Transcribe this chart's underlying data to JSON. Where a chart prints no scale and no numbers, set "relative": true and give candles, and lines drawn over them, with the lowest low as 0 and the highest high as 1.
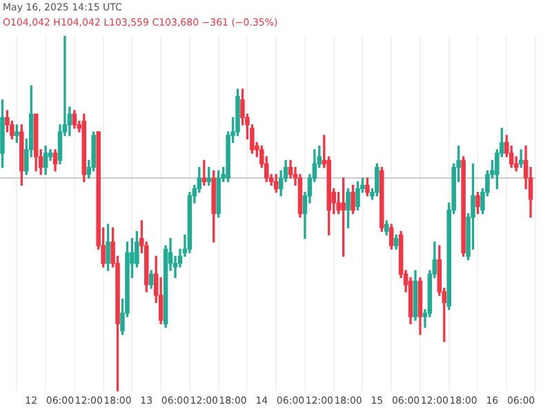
{
  "chart_data": {
    "type": "candlestick",
    "relative": true,
    "annotations": [
      "May 16, 2025 14:15 UTC",
      "O104,042 H104,042 L103,559 C103,680 −361 (−0.35%)"
    ],
    "x": [
      "2025-05-11T18:00",
      "2025-05-11T19:00",
      "2025-05-11T20:00",
      "2025-05-11T21:00",
      "2025-05-11T22:00",
      "2025-05-11T23:00",
      "2025-05-12T00:00",
      "2025-05-12T01:00",
      "2025-05-12T02:00",
      "2025-05-12T03:00",
      "2025-05-12T04:00",
      "2025-05-12T05:00",
      "2025-05-12T06:00",
      "2025-05-12T07:00",
      "2025-05-12T08:00",
      "2025-05-12T09:00",
      "2025-05-12T10:00",
      "2025-05-12T11:00",
      "2025-05-12T12:00",
      "2025-05-12T13:00",
      "2025-05-12T14:00",
      "2025-05-12T15:00",
      "2025-05-12T16:00",
      "2025-05-12T17:00",
      "2025-05-12T18:00",
      "2025-05-12T19:00",
      "2025-05-12T20:00",
      "2025-05-12T21:00",
      "2025-05-12T22:00",
      "2025-05-12T23:00",
      "2025-05-13T00:00",
      "2025-05-13T01:00",
      "2025-05-13T02:00",
      "2025-05-13T03:00",
      "2025-05-13T04:00",
      "2025-05-13T05:00",
      "2025-05-13T06:00",
      "2025-05-13T07:00",
      "2025-05-13T08:00",
      "2025-05-13T09:00",
      "2025-05-13T10:00",
      "2025-05-13T11:00",
      "2025-05-13T12:00",
      "2025-05-13T13:00",
      "2025-05-13T14:00",
      "2025-05-13T15:00",
      "2025-05-13T16:00",
      "2025-05-13T17:00",
      "2025-05-13T18:00",
      "2025-05-13T19:00",
      "2025-05-13T20:00",
      "2025-05-13T21:00",
      "2025-05-13T22:00",
      "2025-05-13T23:00",
      "2025-05-14T00:00",
      "2025-05-14T01:00",
      "2025-05-14T02:00",
      "2025-05-14T03:00",
      "2025-05-14T04:00",
      "2025-05-14T05:00",
      "2025-05-14T06:00",
      "2025-05-14T07:00",
      "2025-05-14T08:00",
      "2025-05-14T09:00",
      "2025-05-14T10:00",
      "2025-05-14T11:00",
      "2025-05-14T12:00",
      "2025-05-14T13:00",
      "2025-05-14T14:00",
      "2025-05-14T15:00",
      "2025-05-14T16:00",
      "2025-05-14T17:00",
      "2025-05-14T18:00",
      "2025-05-14T19:00",
      "2025-05-14T20:00",
      "2025-05-14T21:00",
      "2025-05-14T22:00",
      "2025-05-14T23:00",
      "2025-05-15T00:00",
      "2025-05-15T01:00",
      "2025-05-15T02:00",
      "2025-05-15T03:00",
      "2025-05-15T04:00",
      "2025-05-15T05:00",
      "2025-05-15T06:00",
      "2025-05-15T07:00",
      "2025-05-15T08:00",
      "2025-05-15T09:00",
      "2025-05-15T10:00",
      "2025-05-15T11:00",
      "2025-05-15T12:00",
      "2025-05-15T13:00",
      "2025-05-15T14:00",
      "2025-05-15T15:00",
      "2025-05-15T16:00",
      "2025-05-15T17:00",
      "2025-05-15T18:00",
      "2025-05-15T19:00",
      "2025-05-15T20:00",
      "2025-05-15T21:00",
      "2025-05-15T22:00",
      "2025-05-15T23:00",
      "2025-05-16T00:00",
      "2025-05-16T01:00",
      "2025-05-16T02:00",
      "2025-05-16T03:00",
      "2025-05-16T04:00",
      "2025-05-16T05:00",
      "2025-05-16T06:00",
      "2025-05-16T07:00",
      "2025-05-16T08:00"
    ],
    "ohlc": [
      [
        0.67,
        0.82,
        0.63,
        0.77
      ],
      [
        0.77,
        0.79,
        0.73,
        0.75
      ],
      [
        0.75,
        0.76,
        0.71,
        0.72
      ],
      [
        0.72,
        0.75,
        0.7,
        0.73
      ],
      [
        0.73,
        0.75,
        0.58,
        0.62
      ],
      [
        0.62,
        0.71,
        0.61,
        0.68
      ],
      [
        0.68,
        0.86,
        0.66,
        0.78
      ],
      [
        0.78,
        0.78,
        0.62,
        0.66
      ],
      [
        0.66,
        0.68,
        0.61,
        0.63
      ],
      [
        0.63,
        0.69,
        0.61,
        0.67
      ],
      [
        0.66,
        0.68,
        0.65,
        0.67
      ],
      [
        0.67,
        0.68,
        0.62,
        0.64
      ],
      [
        0.65,
        0.75,
        0.64,
        0.73
      ],
      [
        0.73,
        1.0,
        0.72,
        0.75
      ],
      [
        0.75,
        0.8,
        0.72,
        0.78
      ],
      [
        0.78,
        0.79,
        0.74,
        0.75
      ],
      [
        0.75,
        0.76,
        0.73,
        0.74
      ],
      [
        0.76,
        0.78,
        0.59,
        0.61
      ],
      [
        0.61,
        0.65,
        0.6,
        0.63
      ],
      [
        0.63,
        0.73,
        0.62,
        0.72
      ],
      [
        0.73,
        0.73,
        0.4,
        0.41
      ],
      [
        0.41,
        0.46,
        0.35,
        0.36
      ],
      [
        0.36,
        0.47,
        0.34,
        0.42
      ],
      [
        0.42,
        0.46,
        0.35,
        0.36
      ],
      [
        0.36,
        0.38,
        0,
        0.19
      ],
      [
        0.17,
        0.26,
        0.16,
        0.22
      ],
      [
        0.22,
        0.42,
        0.21,
        0.39
      ],
      [
        0.36,
        0.43,
        0.32,
        0.39
      ],
      [
        0.36,
        0.45,
        0.35,
        0.42
      ],
      [
        0.43,
        0.48,
        0.39,
        0.41
      ],
      [
        0.41,
        0.42,
        0.28,
        0.3
      ],
      [
        0.3,
        0.34,
        0.29,
        0.33
      ],
      [
        0.33,
        0.38,
        0.25,
        0.27
      ],
      [
        0.27,
        0.32,
        0.19,
        0.2
      ],
      [
        0.19,
        0.41,
        0.18,
        0.4
      ],
      [
        0.36,
        0.43,
        0.34,
        0.39
      ],
      [
        0.35,
        0.38,
        0.32,
        0.36
      ],
      [
        0.36,
        0.4,
        0.35,
        0.38
      ],
      [
        0.39,
        0.44,
        0.38,
        0.4
      ],
      [
        0.4,
        0.56,
        0.39,
        0.55
      ],
      [
        0.55,
        0.58,
        0.53,
        0.57
      ],
      [
        0.57,
        0.63,
        0.56,
        0.6
      ],
      [
        0.6,
        0.65,
        0.58,
        0.59
      ],
      [
        0.59,
        0.63,
        0.58,
        0.6
      ],
      [
        0.6,
        0.62,
        0.42,
        0.5
      ],
      [
        0.5,
        0.62,
        0.49,
        0.6
      ],
      [
        0.6,
        0.63,
        0.59,
        0.61
      ],
      [
        0.6,
        0.73,
        0.59,
        0.72
      ],
      [
        0.72,
        0.77,
        0.7,
        0.73
      ],
      [
        0.73,
        0.85,
        0.72,
        0.83
      ],
      [
        0.82,
        0.85,
        0.75,
        0.77
      ],
      [
        0.77,
        0.78,
        0.71,
        0.75
      ],
      [
        0.74,
        0.75,
        0.67,
        0.68
      ],
      [
        0.69,
        0.7,
        0.66,
        0.68
      ],
      [
        0.68,
        0.69,
        0.63,
        0.64
      ],
      [
        0.64,
        0.66,
        0.59,
        0.6
      ],
      [
        0.6,
        0.61,
        0.58,
        0.59
      ],
      [
        0.59,
        0.61,
        0.56,
        0.57
      ],
      [
        0.57,
        0.62,
        0.55,
        0.6
      ],
      [
        0.6,
        0.65,
        0.59,
        0.63
      ],
      [
        0.63,
        0.65,
        0.6,
        0.61
      ],
      [
        0.61,
        0.63,
        0.58,
        0.6
      ],
      [
        0.6,
        0.61,
        0.49,
        0.5
      ],
      [
        0.5,
        0.56,
        0.43,
        0.55
      ],
      [
        0.55,
        0.61,
        0.53,
        0.6
      ],
      [
        0.6,
        0.68,
        0.59,
        0.64
      ],
      [
        0.64,
        0.69,
        0.63,
        0.66
      ],
      [
        0.65,
        0.72,
        0.63,
        0.64
      ],
      [
        0.65,
        0.66,
        0.44,
        0.51
      ],
      [
        0.56,
        0.57,
        0.5,
        0.53
      ],
      [
        0.53,
        0.56,
        0.5,
        0.51
      ],
      [
        0.53,
        0.6,
        0.38,
        0.51
      ],
      [
        0.51,
        0.57,
        0.46,
        0.56
      ],
      [
        0.56,
        0.58,
        0.5,
        0.51
      ],
      [
        0.52,
        0.59,
        0.51,
        0.57
      ],
      [
        0.57,
        0.6,
        0.56,
        0.58
      ],
      [
        0.58,
        0.6,
        0.55,
        0.56
      ],
      [
        0.55,
        0.57,
        0.54,
        0.56
      ],
      [
        0.56,
        0.64,
        0.55,
        0.63
      ],
      [
        0.62,
        0.63,
        0.45,
        0.46
      ],
      [
        0.45,
        0.48,
        0.44,
        0.47
      ],
      [
        0.46,
        0.47,
        0.4,
        0.41
      ],
      [
        0.41,
        0.44,
        0.4,
        0.43
      ],
      [
        0.44,
        0.45,
        0.32,
        0.33
      ],
      [
        0.33,
        0.34,
        0.28,
        0.3
      ],
      [
        0.31,
        0.32,
        0.19,
        0.21
      ],
      [
        0.21,
        0.34,
        0.2,
        0.31
      ],
      [
        0.31,
        0.32,
        0.16,
        0.21
      ],
      [
        0.21,
        0.23,
        0.18,
        0.22
      ],
      [
        0.22,
        0.34,
        0.21,
        0.33
      ],
      [
        0.33,
        0.42,
        0.32,
        0.37
      ],
      [
        0.37,
        0.41,
        0.27,
        0.28
      ],
      [
        0.28,
        0.29,
        0.14,
        0.25
      ],
      [
        0.24,
        0.53,
        0.23,
        0.51
      ],
      [
        0.51,
        0.64,
        0.5,
        0.63
      ],
      [
        0.63,
        0.69,
        0.59,
        0.65
      ],
      [
        0.65,
        0.66,
        0.38,
        0.39
      ],
      [
        0.38,
        0.5,
        0.37,
        0.49
      ],
      [
        0.49,
        0.64,
        0.4,
        0.55
      ],
      [
        0.55,
        0.56,
        0.5,
        0.52
      ],
      [
        0.51,
        0.57,
        0.5,
        0.56
      ],
      [
        0.56,
        0.62,
        0.55,
        0.61
      ],
      [
        0.61,
        0.65,
        0.6,
        0.62
      ],
      [
        0.61,
        0.68,
        0.57,
        0.67
      ],
      [
        0.67,
        0.74,
        0.66,
        0.7
      ],
      [
        0.7,
        0.72,
        0.66,
        0.67
      ],
      [
        0.67,
        0.69,
        0.63,
        0.64
      ],
      [
        0.64,
        0.66,
        0.62,
        0.63
      ],
      [
        0.64,
        0.68,
        0.63,
        0.65
      ],
      [
        0.65,
        0.69,
        0.57,
        0.6
      ],
      [
        0.6,
        0.63,
        0.49,
        0.54
      ]
    ],
    "colors": [
      "#22ab94",
      "#f23645",
      "#f23645",
      "#22ab94",
      "#f23645",
      "#22ab94",
      "#22ab94",
      "#f23645",
      "#f23645",
      "#22ab94",
      "#22ab94",
      "#f23645",
      "#22ab94",
      "#22ab94",
      "#22ab94",
      "#f23645",
      "#f23645",
      "#f23645",
      "#22ab94",
      "#22ab94",
      "#f23645",
      "#f23645",
      "#22ab94",
      "#f23645",
      "#f23645",
      "#22ab94",
      "#22ab94",
      "#22ab94",
      "#22ab94",
      "#f23645",
      "#f23645",
      "#22ab94",
      "#f23645",
      "#f23645",
      "#22ab94",
      "#22ab94",
      "#22ab94",
      "#22ab94",
      "#22ab94",
      "#22ab94",
      "#22ab94",
      "#22ab94",
      "#f23645",
      "#22ab94",
      "#f23645",
      "#22ab94",
      "#22ab94",
      "#22ab94",
      "#22ab94",
      "#22ab94",
      "#f23645",
      "#f23645",
      "#f23645",
      "#f23645",
      "#f23645",
      "#f23645",
      "#f23645",
      "#f23645",
      "#22ab94",
      "#22ab94",
      "#f23645",
      "#f23645",
      "#f23645",
      "#22ab94",
      "#22ab94",
      "#22ab94",
      "#22ab94",
      "#f23645",
      "#f23645",
      "#f23645",
      "#f23645",
      "#f23645",
      "#22ab94",
      "#f23645",
      "#22ab94",
      "#22ab94",
      "#f23645",
      "#22ab94",
      "#22ab94",
      "#f23645",
      "#22ab94",
      "#f23645",
      "#22ab94",
      "#f23645",
      "#f23645",
      "#f23645",
      "#22ab94",
      "#f23645",
      "#22ab94",
      "#22ab94",
      "#22ab94",
      "#f23645",
      "#f23645",
      "#22ab94",
      "#22ab94",
      "#22ab94",
      "#f23645",
      "#22ab94",
      "#22ab94",
      "#f23645",
      "#22ab94",
      "#22ab94",
      "#22ab94",
      "#22ab94",
      "#22ab94",
      "#f23645",
      "#f23645",
      "#f23645",
      "#22ab94",
      "#f23645",
      "#f23645"
    ],
    "xlim": [
      "2025-05-11T17:30",
      "2025-05-16T09:00"
    ],
    "xticks": [
      {
        "value": "2025-05-12T00:00",
        "label": "12"
      },
      {
        "value": "2025-05-12T06:00",
        "label": "06:00"
      },
      {
        "value": "2025-05-12T12:00",
        "label": "12:00"
      },
      {
        "value": "2025-05-12T18:00",
        "label": "18:00"
      },
      {
        "value": "2025-05-13T00:00",
        "label": "13"
      },
      {
        "value": "2025-05-13T06:00",
        "label": "06:00"
      },
      {
        "value": "2025-05-13T12:00",
        "label": "12:00"
      },
      {
        "value": "2025-05-13T18:00",
        "label": "18:00"
      },
      {
        "value": "2025-05-14T00:00",
        "label": "14"
      },
      {
        "value": "2025-05-14T06:00",
        "label": "06:00"
      },
      {
        "value": "2025-05-14T12:00",
        "label": "12:00"
      },
      {
        "value": "2025-05-14T18:00",
        "label": "18:00"
      },
      {
        "value": "2025-05-15T00:00",
        "label": "15"
      },
      {
        "value": "2025-05-15T06:00",
        "label": "06:00"
      },
      {
        "value": "2025-05-15T12:00",
        "label": "12:00"
      },
      {
        "value": "2025-05-15T18:00",
        "label": "18:00"
      },
      {
        "value": "2025-05-16T00:00",
        "label": "16"
      },
      {
        "value": "2025-05-16T06:00",
        "label": "06:00"
      }
    ],
    "ref_lines": [
      {
        "axis": "y",
        "value": 0.6,
        "color": "#cccccc"
      }
    ],
    "grid": "x",
    "legend": false
  }
}
